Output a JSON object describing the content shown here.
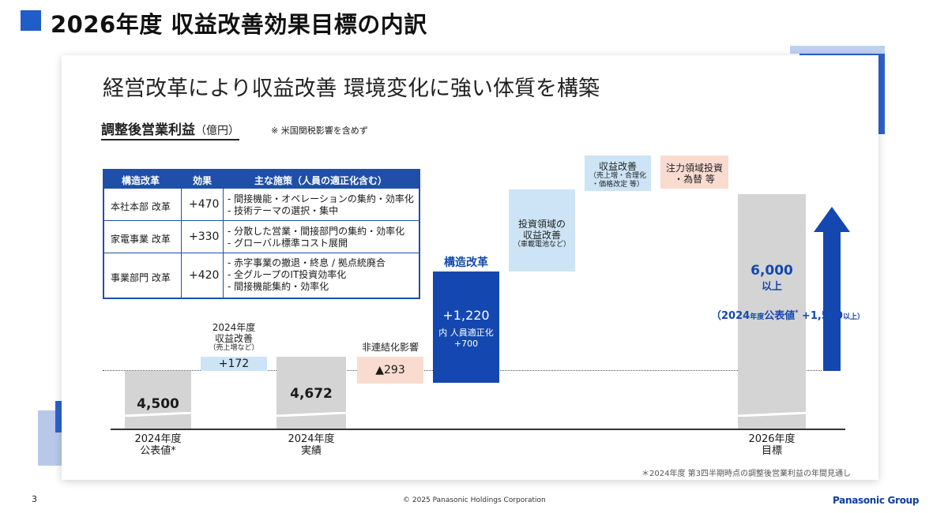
{
  "header": {
    "title": "2026年度 収益改善効果目標の内訳"
  },
  "card": {
    "headline": "経営改革により収益改善 環境変化に強い体質を構築",
    "subhead": "調整後営業利益",
    "subhead_unit": "（億円）",
    "subhead_note": "※ 米国関税影響を含めず"
  },
  "table": {
    "headers": [
      "構造改革",
      "効果",
      "主な施策（人員の適正化含む）"
    ],
    "rows": [
      {
        "name": "本社本部 改革",
        "effect": "+470",
        "measures": [
          "- 間接機能・オペレーションの集約・効率化",
          "- 技術テーマの選択・集中"
        ]
      },
      {
        "name": "家電事業 改革",
        "effect": "+330",
        "measures": [
          "- 分散した営業・間接部門の集約・効率化",
          "- グローバル標準コスト展開"
        ]
      },
      {
        "name": "事業部門 改革",
        "effect": "+420",
        "measures": [
          "- 赤字事業の撤退・終息 / 拠点統廃合",
          "- 全グループのIT投資効率化",
          "- 間接機能集約・効率化"
        ]
      }
    ]
  },
  "chart_data": {
    "type": "bar",
    "subtype": "waterfall",
    "unit": "億円",
    "categories": [
      "2024年度 公表値*",
      "2024年度 収益改善（売上増など）",
      "2024年度 実績",
      "非連結化影響",
      "構造改革",
      "投資領域の収益改善（車載電池など）",
      "収益改善（売上増・合理化・価格改定 等）",
      "注力領域投資・為替 等",
      "2026年度 目標"
    ],
    "values": [
      4500,
      172,
      4672,
      -293,
      1220,
      null,
      null,
      null,
      6000
    ],
    "bars": {
      "b2024_pub": {
        "value": "4,500",
        "cat_year": "2024年度",
        "cat_name": "公表値*"
      },
      "b2024_imp": {
        "value": "+172",
        "label_year": "2024年度",
        "label_name": "収益改善",
        "label_sub": "（売上増など）"
      },
      "b2024_act": {
        "value": "4,672",
        "cat_year": "2024年度",
        "cat_name": "実績"
      },
      "deconsol": {
        "value": "▲293",
        "label": "非連結化影響"
      },
      "struct": {
        "tag": "構造改革",
        "value": "+1,220",
        "note1": "内 人員適正化",
        "note2": "+700"
      },
      "invest": {
        "label1": "投資領域の",
        "label2": "収益改善",
        "label_sub": "（車載電池など）"
      },
      "rev_imp": {
        "label": "収益改善",
        "label_sub1": "（売上増・合理化",
        "label_sub2": "・価格改定 等）"
      },
      "focus": {
        "label1": "注力領域投資",
        "label2": "・為替 等"
      },
      "b2026": {
        "value": "6,000",
        "value_sub": "以上",
        "cat_year": "2026年度",
        "cat_name": "目標"
      }
    },
    "annotation": {
      "prefix": "（2024",
      "prefix_small": "年度",
      "mid": "公表値",
      "star": "*",
      "suffix": " +1,500",
      "suffix_small": "以上）"
    },
    "colors": {
      "base": "#d4d4d4",
      "increase_light": "#cce4f5",
      "decrease": "#fadbd0",
      "structural": "#1448b0",
      "arrow": "#1448b0"
    }
  },
  "footer": {
    "footnote": "＊2024年度 第3四半期時点の調整後営業利益の年間見通し",
    "page_number": "3",
    "copyright": "© 2025 Panasonic Holdings Corporation",
    "brand": "Panasonic Group"
  }
}
